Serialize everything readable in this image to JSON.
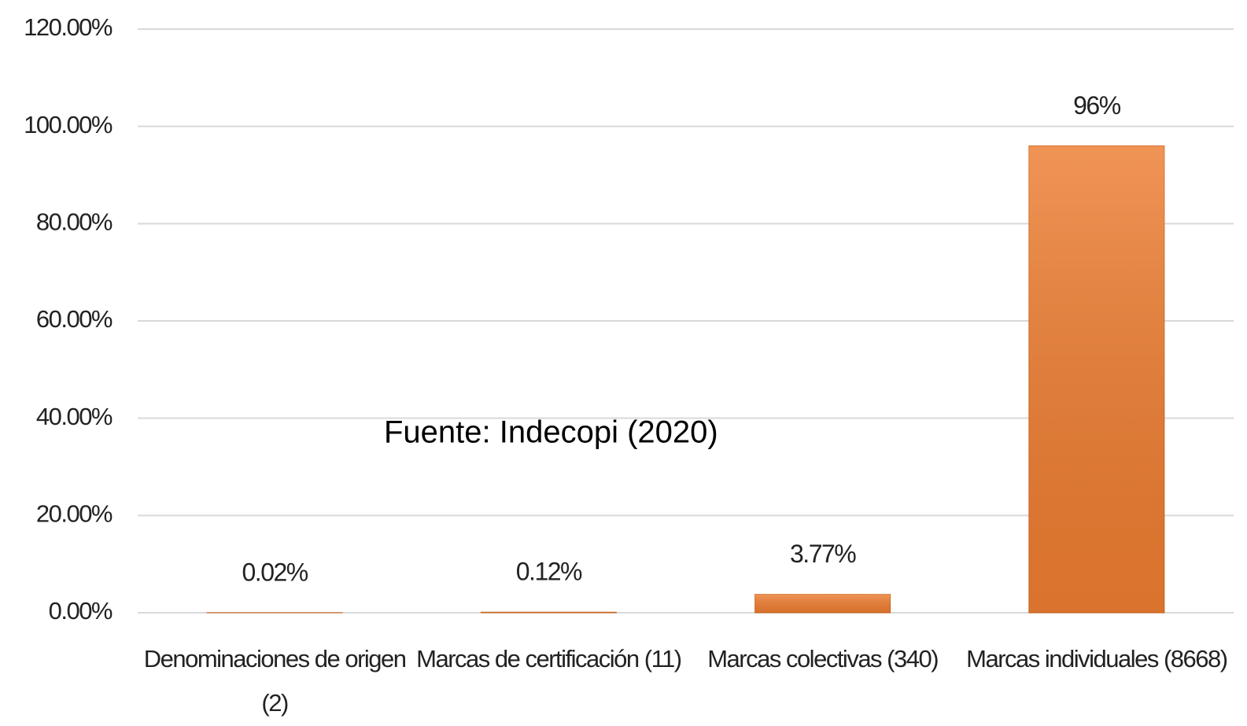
{
  "chart_data": {
    "type": "bar",
    "categories": [
      "Denominaciones de origen (2)",
      "Marcas de certificación (11)",
      "Marcas colectivas (340)",
      "Marcas individuales (8668)"
    ],
    "values": [
      0.02,
      0.12,
      3.77,
      96
    ],
    "value_labels": [
      "0.02%",
      "0.12%",
      "3.77%",
      "96%"
    ],
    "color": "#ed7d31",
    "ylim": [
      0,
      120
    ],
    "yticks": [
      {
        "value": 0,
        "label": "0.00%"
      },
      {
        "value": 20,
        "label": "20.00%"
      },
      {
        "value": 40,
        "label": "40.00%"
      },
      {
        "value": 60,
        "label": "60.00%"
      },
      {
        "value": 80,
        "label": "80.00%"
      },
      {
        "value": 100,
        "label": "100.00%"
      },
      {
        "value": 120,
        "label": "120.00%"
      }
    ],
    "grid": true,
    "annotations": [
      "Fuente: Indecopi (2020)"
    ]
  }
}
